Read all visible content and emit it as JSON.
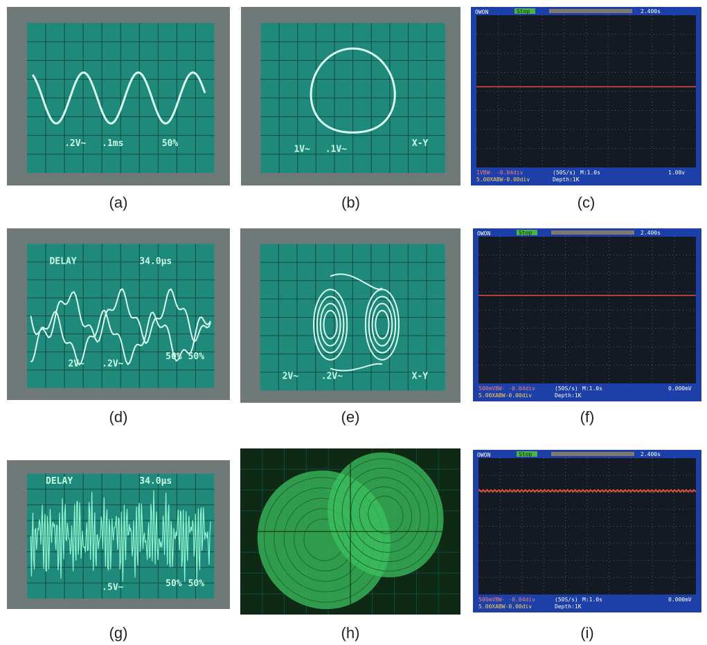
{
  "panels": [
    {
      "label": "(a)",
      "screen_texts": [
        ".2V~",
        ".1ms",
        "50%"
      ]
    },
    {
      "label": "(b)",
      "screen_texts": [
        "1V~",
        ".1V~",
        "X-Y"
      ]
    },
    {
      "label": "(c)",
      "screen_texts": [
        "OWON",
        "Stop",
        "2.400s",
        "1VBW- -0.04div",
        "(50S/s)",
        "M:1.0s",
        "1.08v",
        "5.00XABW-0.00div",
        "Depth:1K"
      ]
    },
    {
      "label": "(d)",
      "screen_texts": [
        "DELAY",
        "34.0μs",
        "2V~",
        ".2V~",
        "50%",
        "50%"
      ]
    },
    {
      "label": "(e)",
      "screen_texts": [
        "2V~",
        ".2V~",
        "X-Y"
      ]
    },
    {
      "label": "(f)",
      "screen_texts": [
        "OWON",
        "Stop",
        "2.400s",
        "500mVBW- -0.04div",
        "(50S/s)",
        "M:1.0s",
        "0.000mV",
        "5.00XABW-0.00div",
        "Depth:1K"
      ]
    },
    {
      "label": "(g)",
      "screen_texts": [
        "DELAY",
        "34.0μs",
        ".5V~",
        "50%",
        "50%"
      ]
    },
    {
      "label": "(h)",
      "screen_texts": []
    },
    {
      "label": "(i)",
      "screen_texts": [
        "OWON",
        "Stop",
        "2.400s",
        "500mVBW- -0.04div",
        "(50S/s)",
        "M:1.0s",
        "0.000mV",
        "5.00XABW-0.00div",
        "Depth:1K"
      ]
    }
  ]
}
